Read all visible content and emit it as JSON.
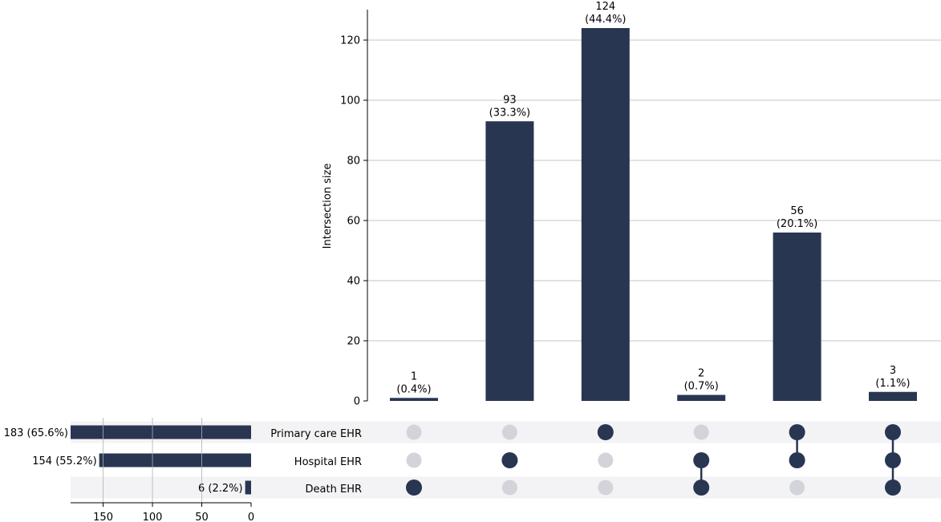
{
  "chart_data": {
    "type": "bar",
    "subtype": "upset",
    "ylabel": "Intersection size",
    "ylim": [
      0,
      130
    ],
    "yticks": [
      0,
      20,
      40,
      60,
      80,
      100,
      120
    ],
    "grid": true,
    "sets": [
      {
        "name": "Primary care EHR",
        "size": 183,
        "size_label": "183 (65.6%)"
      },
      {
        "name": "Hospital EHR",
        "size": 154,
        "size_label": "154 (55.2%)"
      },
      {
        "name": "Death EHR",
        "size": 6,
        "size_label": "6 (2.2%)"
      }
    ],
    "set_size_ticks": [
      150,
      100,
      50,
      0
    ],
    "set_size_xlim": [
      0,
      183
    ],
    "intersections": [
      {
        "members": [
          "Death EHR"
        ],
        "value": 1,
        "count_label": "1",
        "pct_label": "(0.4%)"
      },
      {
        "members": [
          "Hospital EHR"
        ],
        "value": 93,
        "count_label": "93",
        "pct_label": "(33.3%)"
      },
      {
        "members": [
          "Primary care EHR"
        ],
        "value": 124,
        "count_label": "124",
        "pct_label": "(44.4%)"
      },
      {
        "members": [
          "Hospital EHR",
          "Death EHR"
        ],
        "value": 2,
        "count_label": "2",
        "pct_label": "(0.7%)"
      },
      {
        "members": [
          "Primary care EHR",
          "Hospital EHR"
        ],
        "value": 56,
        "count_label": "56",
        "pct_label": "(20.1%)"
      },
      {
        "members": [
          "Primary care EHR",
          "Hospital EHR",
          "Death EHR"
        ],
        "value": 3,
        "count_label": "3",
        "pct_label": "(1.1%)"
      }
    ]
  },
  "colors": {
    "bar": "#283652",
    "inactive_dot": "#d2d4da",
    "stripe": "#f3f3f5",
    "grid": "#b0b0b0",
    "axis": "#000000"
  }
}
